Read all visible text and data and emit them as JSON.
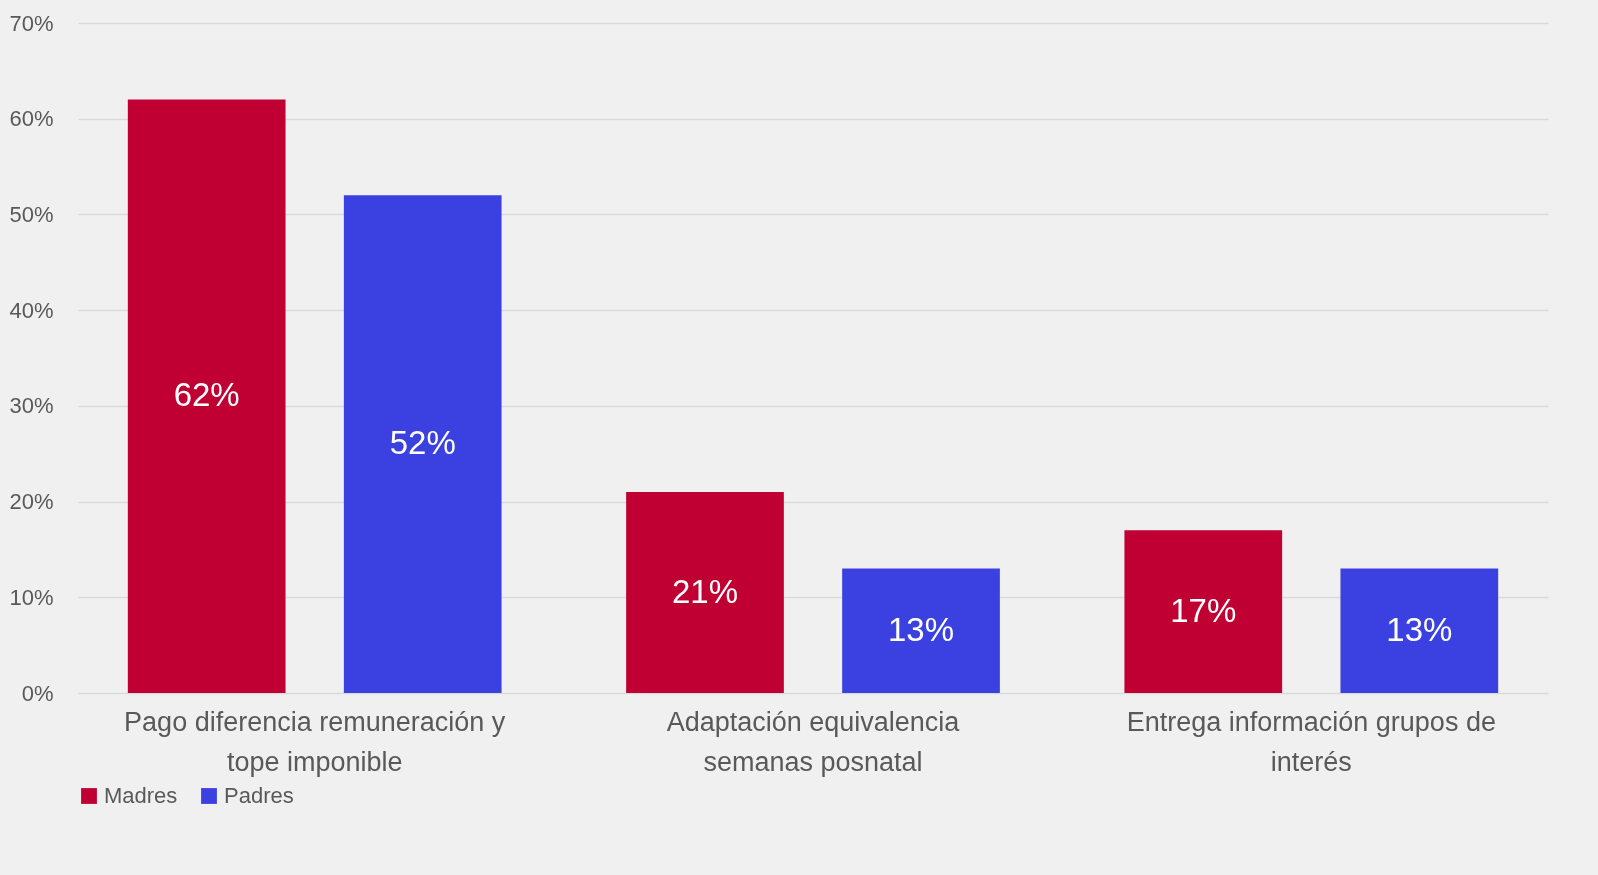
{
  "chart_data": {
    "type": "bar",
    "categories": [
      "Pago diferencia remuneración y tope imponible",
      "Adaptación equivalencia semanas posnatal",
      "Entrega información grupos de interés"
    ],
    "series": [
      {
        "name": "Madres",
        "color": "#c00033",
        "values": [
          62,
          21,
          17
        ],
        "value_labels": [
          "62%",
          "21%",
          "17%"
        ]
      },
      {
        "name": "Padres",
        "color": "#3a41e0",
        "values": [
          52,
          13,
          13
        ],
        "value_labels": [
          "52%",
          "13%",
          "13%"
        ]
      }
    ],
    "ylim": [
      0,
      70
    ],
    "yticks": [
      {
        "value": 0,
        "label": "0%"
      },
      {
        "value": 10,
        "label": "10%"
      },
      {
        "value": 20,
        "label": "20%"
      },
      {
        "value": 30,
        "label": "30%"
      },
      {
        "value": 40,
        "label": "40%"
      },
      {
        "value": 50,
        "label": "50%"
      },
      {
        "value": 60,
        "label": "60%"
      },
      {
        "value": 70,
        "label": "70%"
      }
    ],
    "grid": "y",
    "legend": "bottom"
  }
}
